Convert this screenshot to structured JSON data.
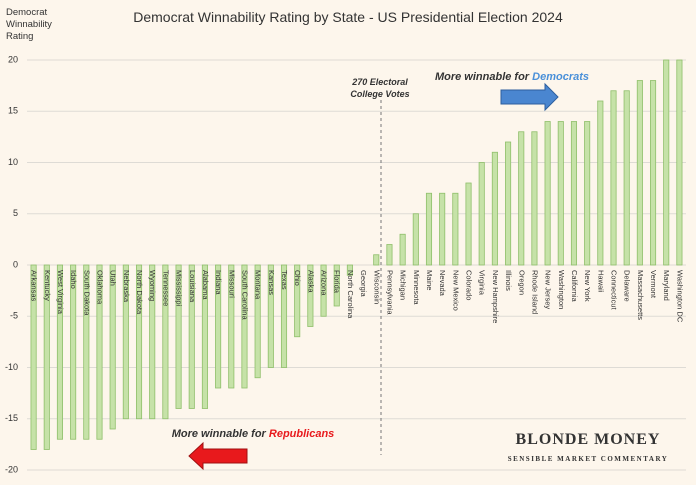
{
  "chart_data": {
    "type": "bar",
    "title": "Democrat Winnability Rating by State - US Presidential Election 2024",
    "y_label": [
      "Democrat",
      "Winnability",
      "Rating"
    ],
    "categories": [
      "Arkansas",
      "Kentucky",
      "West Virginia",
      "Idaho",
      "South Dakota",
      "Oklahoma",
      "Utah",
      "Nebraska",
      "North Dakota",
      "Wyoming",
      "Tennessee",
      "Mississippi",
      "Louisiana",
      "Alabama",
      "Indiana",
      "Missouri",
      "South Carolina",
      "Montana",
      "Kansas",
      "Texas",
      "Ohio",
      "Alaska",
      "Arizona",
      "Florida",
      "North Carolina",
      "Georgia",
      "Wisconsin",
      "Pennsylvania",
      "Michigan",
      "Minnesota",
      "Maine",
      "Nevada",
      "New Mexico",
      "Colorado",
      "Virginia",
      "New Hampshire",
      "Illinois",
      "Oregon",
      "Rhode Island",
      "New Jersey",
      "Washington",
      "California",
      "New York",
      "Hawaii",
      "Connecticut",
      "Delaware",
      "Massachusetts",
      "Vermont",
      "Maryland",
      "Washington DC"
    ],
    "values": [
      -18,
      -18,
      -17,
      -17,
      -17,
      -17,
      -16,
      -15,
      -15,
      -15,
      -15,
      -14,
      -14,
      -14,
      -12,
      -12,
      -12,
      -11,
      -10,
      -10,
      -7,
      -6,
      -5,
      -4,
      -1,
      0,
      1,
      2,
      3,
      5,
      7,
      7,
      7,
      8,
      10,
      11,
      12,
      13,
      13,
      14,
      14,
      14,
      14,
      16,
      17,
      17,
      18,
      18,
      20,
      20
    ],
    "color": "#c6e2a8",
    "ylim": [
      -20,
      20
    ],
    "yticks": [
      -20,
      -15,
      -10,
      -5,
      0,
      5,
      10,
      15,
      20
    ],
    "grid": true,
    "annotations": {
      "electoral": [
        "270 Electoral",
        "College Votes"
      ],
      "democrats": {
        "text": "More winnable for ",
        "highlight": "Democrats",
        "color": "#4a90d9"
      },
      "republicans": {
        "text": "More winnable for ",
        "highlight": "Republicans",
        "color": "#e8191c"
      },
      "brand": "BLONDE MONEY",
      "tagline": "SENSIBLE MARKET COMMENTARY"
    }
  }
}
